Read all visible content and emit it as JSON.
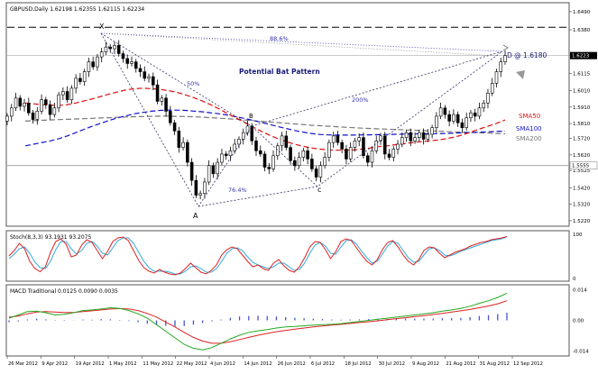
{
  "chart_data": {
    "type": "candlestick",
    "symbol_header": "GBPUSD,Daily  1.62198  1.62355  1.62115  1.62234",
    "pattern_title": "Potential Bat Pattern",
    "point_labels": {
      "X": "X",
      "A": "A",
      "B": "B",
      "C": "c",
      "D": "D @ 1.6180"
    },
    "ratio_labels": {
      "xb": "50%",
      "xd": "88.6%",
      "ac": "76.4%",
      "bd": "200%"
    },
    "ylim": [
      1.5225,
      1.6495
    ],
    "price_ticks": [
      "1.6490",
      "1.6380",
      "1.6225",
      "1.6115",
      "1.6010",
      "1.5910",
      "1.5810",
      "1.5720",
      "1.5620",
      "1.5525",
      "1.5420",
      "1.5320",
      "1.5220"
    ],
    "price_tick_values": [
      1.649,
      1.638,
      1.6225,
      1.6115,
      1.601,
      1.591,
      1.581,
      1.572,
      1.562,
      1.5525,
      1.542,
      1.532,
      1.522
    ],
    "current_price_label": "1.6223",
    "level_label": "1.5555",
    "level_value": 1.5555,
    "resistance_value": 1.6395,
    "x_ticks": [
      "26 Mar 2012",
      "9 Apr 2012",
      "19 Apr 2012",
      "1 May 2012",
      "11 May 2012",
      "22 May 2012",
      "4 Jun 2012",
      "14 Jun 2012",
      "26 Jun 2012",
      "6 Jul 2012",
      "18 Jul 2012",
      "30 Jul 2012",
      "9 Aug 2012",
      "21 Aug 2012",
      "31 Aug 2012",
      "12 Sep 2012"
    ],
    "legend": [
      {
        "name": "SMA50",
        "color": "#dd1111"
      },
      {
        "name": "SMA100",
        "color": "#1111cc"
      },
      {
        "name": "SMA200",
        "color": "#777777"
      }
    ],
    "close": [
      1.5855,
      1.5905,
      1.5965,
      1.5915,
      1.5935,
      1.5875,
      1.5835,
      1.5885,
      1.5955,
      1.5925,
      1.5865,
      1.5905,
      1.5985,
      1.6005,
      1.5955,
      1.6025,
      1.6085,
      1.6065,
      1.6125,
      1.6185,
      1.6155,
      1.6215,
      1.6245,
      1.6275,
      1.6265,
      1.6285,
      1.6235,
      1.6205,
      1.6175,
      1.6185,
      1.6145,
      1.6125,
      1.6085,
      1.6095,
      1.6045,
      1.5945,
      1.5965,
      1.5885,
      1.5815,
      1.5765,
      1.5665,
      1.5695,
      1.5575,
      1.5465,
      1.5375,
      1.5385,
      1.5455,
      1.5555,
      1.5505,
      1.5575,
      1.5625,
      1.5615,
      1.5645,
      1.5685,
      1.5715,
      1.5755,
      1.5795,
      1.5705,
      1.5645,
      1.5625,
      1.5545,
      1.5535,
      1.5615,
      1.5675,
      1.5735,
      1.5665,
      1.5585,
      1.5555,
      1.5605,
      1.5645,
      1.5595,
      1.5535,
      1.5485,
      1.5555,
      1.5605,
      1.5695,
      1.5735,
      1.5695,
      1.5655,
      1.5595,
      1.5665,
      1.5705,
      1.5725,
      1.5615,
      1.5575,
      1.5645,
      1.5705,
      1.5735,
      1.5625,
      1.5605,
      1.5655,
      1.5685,
      1.5725,
      1.5755,
      1.5705,
      1.5725,
      1.5755,
      1.5715,
      1.5745,
      1.5785,
      1.5855,
      1.5905,
      1.5865,
      1.5825,
      1.5865,
      1.5815,
      1.5785,
      1.5845,
      1.5875,
      1.5855,
      1.5905,
      1.5935,
      1.5995,
      1.6055,
      1.6125,
      1.6185,
      1.6223
    ],
    "sma50": [
      1.5935,
      1.593,
      1.5925,
      1.5922,
      1.592,
      1.5925,
      1.5935,
      1.5948,
      1.596,
      1.5975,
      1.599,
      1.6003,
      1.6015,
      1.6022,
      1.6025,
      1.6022,
      1.6018,
      1.601,
      1.6,
      1.5985,
      1.5968,
      1.5948,
      1.5925,
      1.59,
      1.5872,
      1.5845,
      1.5818,
      1.579,
      1.5765,
      1.574,
      1.5718,
      1.57,
      1.5685,
      1.5672,
      1.5662,
      1.5655,
      1.565,
      1.5648,
      1.5648,
      1.565,
      1.5655,
      1.5662,
      1.567,
      1.5675,
      1.5682,
      1.5688,
      1.5695,
      1.57,
      1.5705,
      1.571,
      1.5718,
      1.5728,
      1.5742,
      1.576,
      1.5778,
      1.5795,
      1.5812,
      1.5832
    ],
    "sma100": [
      1.5675,
      1.5685,
      1.5695,
      1.5705,
      1.5718,
      1.5735,
      1.5755,
      1.5775,
      1.5795,
      1.5812,
      1.583,
      1.5845,
      1.5858,
      1.587,
      1.5878,
      1.5885,
      1.589,
      1.5892,
      1.5892,
      1.589,
      1.5886,
      1.5882,
      1.5876,
      1.587,
      1.5862,
      1.5852,
      1.5842,
      1.583,
      1.5818,
      1.5805,
      1.5792,
      1.578,
      1.5768,
      1.5758,
      1.575,
      1.5744,
      1.5741,
      1.574,
      1.574,
      1.574,
      1.5741,
      1.5742,
      1.5743,
      1.5744,
      1.5745,
      1.5746,
      1.5747,
      1.5748,
      1.5748,
      1.5749,
      1.575,
      1.5752,
      1.5754,
      1.5756,
      1.5758,
      1.576,
      1.5762,
      1.5764
    ],
    "sma200": [
      1.5825,
      1.5828,
      1.583,
      1.5832,
      1.5834,
      1.5836,
      1.5838,
      1.584,
      1.5842,
      1.5844,
      1.5846,
      1.5848,
      1.585,
      1.5852,
      1.5853,
      1.5854,
      1.5855,
      1.5855,
      1.5854,
      1.5853,
      1.5851,
      1.5849,
      1.5846,
      1.5843,
      1.584,
      1.5836,
      1.5832,
      1.5828,
      1.5824,
      1.582,
      1.5816,
      1.5812,
      1.5808,
      1.5804,
      1.58,
      1.5797,
      1.5794,
      1.5791,
      1.5788,
      1.5785,
      1.5782,
      1.578,
      1.5778,
      1.5776,
      1.5774,
      1.5772,
      1.577,
      1.5768,
      1.5766,
      1.5764,
      1.5762,
      1.576,
      1.5758,
      1.5756,
      1.5754,
      1.5752,
      1.575,
      1.5748
    ],
    "stoch_header": "Stoch(8,3,3) 93.1931 93.2075",
    "stoch_ylim": [
      0,
      100
    ],
    "stoch_ticks": [
      "100",
      "0"
    ],
    "stoch_k": [
      50,
      62,
      78,
      66,
      38,
      22,
      15,
      26,
      58,
      82,
      88,
      76,
      48,
      52,
      74,
      86,
      80,
      62,
      44,
      60,
      82,
      90,
      92,
      84,
      62,
      40,
      24,
      16,
      12,
      20,
      14,
      10,
      8,
      12,
      22,
      34,
      24,
      14,
      10,
      18,
      30,
      52,
      64,
      70,
      66,
      52,
      38,
      26,
      30,
      22,
      18,
      34,
      42,
      28,
      18,
      14,
      26,
      46,
      70,
      82,
      80,
      64,
      44,
      60,
      82,
      88,
      84,
      68,
      52,
      38,
      30,
      42,
      64,
      80,
      84,
      70,
      52,
      38,
      30,
      42,
      62,
      70,
      68,
      56,
      46,
      52,
      58,
      62,
      66,
      72,
      76,
      80,
      82,
      86,
      88,
      90,
      93
    ],
    "stoch_d": [
      44,
      54,
      66,
      70,
      56,
      36,
      24,
      22,
      38,
      64,
      82,
      82,
      66,
      54,
      62,
      78,
      82,
      72,
      56,
      52,
      68,
      84,
      90,
      90,
      78,
      58,
      38,
      24,
      16,
      16,
      16,
      14,
      10,
      10,
      16,
      26,
      28,
      22,
      14,
      14,
      22,
      38,
      56,
      66,
      68,
      62,
      48,
      36,
      30,
      26,
      22,
      26,
      34,
      34,
      26,
      18,
      20,
      34,
      56,
      74,
      80,
      72,
      56,
      54,
      70,
      84,
      86,
      76,
      60,
      46,
      34,
      38,
      54,
      72,
      82,
      78,
      62,
      46,
      36,
      38,
      52,
      66,
      68,
      62,
      52,
      50,
      54,
      60,
      64,
      68,
      72,
      76,
      80,
      84,
      86,
      88,
      93
    ],
    "macd_header": "MACD Traditional  0.0125  0.0090  0.0035",
    "macd_ylim": [
      -0.0155,
      0.0155
    ],
    "macd_ticks": [
      "0.014",
      "0.00",
      "-0.014"
    ],
    "macd_tick_values": [
      0.014,
      0.0,
      -0.014
    ],
    "macd_line": [
      0.001,
      0.0025,
      0.004,
      0.0042,
      0.0035,
      0.0025,
      0.0028,
      0.0035,
      0.0045,
      0.0048,
      0.0052,
      0.0058,
      0.0055,
      0.0045,
      0.003,
      0.001,
      -0.002,
      -0.005,
      -0.008,
      -0.011,
      -0.0128,
      -0.0135,
      -0.0125,
      -0.0105,
      -0.0085,
      -0.0068,
      -0.0055,
      -0.0048,
      -0.0042,
      -0.0035,
      -0.003,
      -0.0028,
      -0.0025,
      -0.0022,
      -0.002,
      -0.0018,
      -0.0015,
      -0.001,
      -0.0005,
      0.0,
      0.0005,
      0.001,
      0.0015,
      0.002,
      0.0025,
      0.003,
      0.0035,
      0.0042,
      0.0048,
      0.0055,
      0.0065,
      0.0078,
      0.009,
      0.0105,
      0.0125
    ],
    "macd_signal": [
      0.0015,
      0.002,
      0.003,
      0.0038,
      0.004,
      0.0038,
      0.0036,
      0.0036,
      0.004,
      0.0044,
      0.0048,
      0.0052,
      0.0054,
      0.0052,
      0.0045,
      0.0032,
      0.0015,
      -0.0008,
      -0.003,
      -0.0055,
      -0.0078,
      -0.0095,
      -0.0105,
      -0.0105,
      -0.0098,
      -0.0088,
      -0.0078,
      -0.0068,
      -0.006,
      -0.0052,
      -0.0046,
      -0.004,
      -0.0035,
      -0.003,
      -0.0026,
      -0.0022,
      -0.0018,
      -0.0014,
      -0.001,
      -0.0006,
      -0.0002,
      0.0003,
      0.0008,
      0.0012,
      0.0017,
      0.0022,
      0.0027,
      0.0032,
      0.0038,
      0.0044,
      0.005,
      0.0058,
      0.0066,
      0.0076,
      0.009
    ],
    "macd_histogram": [
      -0.0008,
      -0.0005,
      0.0004,
      0.0008,
      0.0005,
      0.0002,
      -0.0002,
      0.0001,
      0.0004,
      0.0003,
      0.0006,
      0.0005,
      0.0002,
      -0.0003,
      -0.0008,
      -0.0015,
      -0.0022,
      -0.0025,
      -0.0028,
      -0.0026,
      -0.002,
      -0.0012,
      -0.0005,
      0.0004,
      0.0012,
      0.0018,
      0.002,
      0.0021,
      0.002,
      0.0018,
      0.0015,
      0.0012,
      0.001,
      0.0008,
      0.0006,
      0.0004,
      0.0003,
      0.0004,
      0.0005,
      0.0006,
      0.0007,
      0.0007,
      0.0007,
      0.0008,
      0.0008,
      0.0008,
      0.0008,
      0.001,
      0.001,
      0.0011,
      0.0015,
      0.002,
      0.0024,
      0.0029,
      0.0035
    ],
    "grid": false
  },
  "colors": {
    "resistance_line": "#000000",
    "pattern_line": "#333366",
    "dotted_blue": "#3333aa",
    "stoch_k": "#dd2222",
    "stoch_d": "#33aadd",
    "macd_line": "#22aa22",
    "macd_signal": "#dd2222",
    "macd_histogram": "#4455cc",
    "arrow": "#999999"
  }
}
